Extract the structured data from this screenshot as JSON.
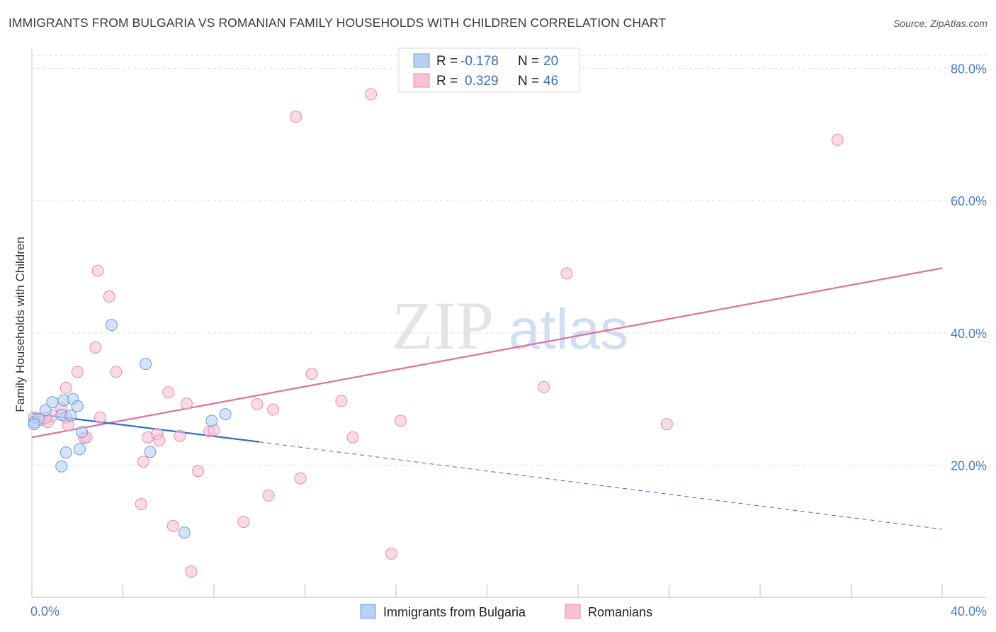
{
  "title": "IMMIGRANTS FROM BULGARIA VS ROMANIAN FAMILY HOUSEHOLDS WITH CHILDREN CORRELATION CHART",
  "source": "Source: ZipAtlas.com",
  "watermark": {
    "zip": "ZIP",
    "atlas": "atlas"
  },
  "colors": {
    "blue": "#6b9be0",
    "blue_fill": "#b9d0f3",
    "blue_line": "#2f6fd0",
    "pink": "#e88aaa",
    "pink_fill": "#f7c3d4",
    "pink_line": "#e0709a",
    "grid": "#dddddd",
    "tick_text": "#4a7cc7"
  },
  "legend": {
    "rows": [
      {
        "r_label": "R =",
        "r_value": "-0.178",
        "n_label": "N =",
        "n_value": "20"
      },
      {
        "r_label": "R =",
        "r_value": "0.329",
        "n_label": "N =",
        "n_value": "46"
      }
    ]
  },
  "bottom_legend": [
    "Immigrants from Bulgaria",
    "Romanians"
  ],
  "chart_data": {
    "type": "scatter",
    "title": "IMMIGRANTS FROM BULGARIA VS ROMANIAN FAMILY HOUSEHOLDS WITH CHILDREN CORRELATION CHART",
    "xlabel": "",
    "ylabel": "Family Households with Children",
    "xlim": [
      0,
      40
    ],
    "ylim": [
      0,
      82
    ],
    "x_tick_labels": [
      "0.0%",
      "40.0%"
    ],
    "y_ticks": [
      20,
      40,
      60,
      80
    ],
    "y_tick_labels": [
      "20.0%",
      "40.0%",
      "60.0%",
      "80.0%"
    ],
    "grid": true,
    "series": [
      {
        "name": "Immigrants from Bulgaria",
        "color": "#6b9be0",
        "points": [
          [
            0.1,
            26.5
          ],
          [
            0.3,
            27.0
          ],
          [
            0.6,
            28.3
          ],
          [
            0.9,
            29.5
          ],
          [
            1.3,
            27.6
          ],
          [
            1.4,
            29.8
          ],
          [
            1.8,
            30.0
          ],
          [
            2.0,
            28.9
          ],
          [
            1.7,
            27.5
          ],
          [
            2.2,
            25.0
          ],
          [
            2.1,
            22.4
          ],
          [
            1.5,
            21.9
          ],
          [
            1.3,
            19.8
          ],
          [
            3.5,
            41.2
          ],
          [
            5.0,
            35.3
          ],
          [
            5.2,
            22.0
          ],
          [
            6.7,
            9.8
          ],
          [
            7.9,
            26.7
          ],
          [
            8.5,
            27.7
          ],
          [
            0.1,
            26.2
          ]
        ],
        "trend": {
          "x0": 0.0,
          "y0": 27.8,
          "x1": 10.0,
          "y1": 23.5,
          "dash_to_x": 40.0,
          "dash_to_y": 10.3
        }
      },
      {
        "name": "Romanians",
        "color": "#e88aaa",
        "points": [
          [
            0.1,
            27.2
          ],
          [
            0.4,
            26.8
          ],
          [
            0.7,
            26.5
          ],
          [
            0.9,
            27.5
          ],
          [
            1.3,
            28.6
          ],
          [
            1.5,
            27.2
          ],
          [
            1.6,
            26.0
          ],
          [
            1.5,
            31.7
          ],
          [
            2.0,
            34.1
          ],
          [
            2.3,
            24.1
          ],
          [
            2.4,
            24.2
          ],
          [
            2.8,
            37.8
          ],
          [
            2.9,
            49.4
          ],
          [
            3.0,
            27.2
          ],
          [
            3.4,
            45.5
          ],
          [
            3.7,
            34.1
          ],
          [
            4.8,
            14.1
          ],
          [
            4.9,
            20.5
          ],
          [
            5.1,
            24.2
          ],
          [
            5.5,
            24.7
          ],
          [
            5.6,
            23.7
          ],
          [
            6.0,
            31.0
          ],
          [
            6.2,
            10.8
          ],
          [
            6.5,
            24.4
          ],
          [
            6.8,
            29.3
          ],
          [
            7.0,
            3.9
          ],
          [
            7.3,
            19.1
          ],
          [
            7.8,
            25.1
          ],
          [
            8.0,
            25.3
          ],
          [
            9.3,
            11.4
          ],
          [
            9.9,
            29.2
          ],
          [
            10.4,
            15.4
          ],
          [
            10.6,
            28.4
          ],
          [
            11.6,
            72.7
          ],
          [
            11.8,
            18.0
          ],
          [
            12.3,
            33.8
          ],
          [
            13.6,
            29.7
          ],
          [
            14.1,
            24.2
          ],
          [
            14.9,
            76.1
          ],
          [
            15.8,
            6.6
          ],
          [
            16.2,
            26.7
          ],
          [
            22.5,
            31.8
          ],
          [
            23.5,
            49.0
          ],
          [
            27.9,
            26.2
          ],
          [
            35.4,
            69.2
          ],
          [
            0.6,
            27.1
          ]
        ],
        "trend": {
          "x0": 0.0,
          "y0": 24.2,
          "x1": 40.0,
          "y1": 49.8
        }
      }
    ]
  }
}
